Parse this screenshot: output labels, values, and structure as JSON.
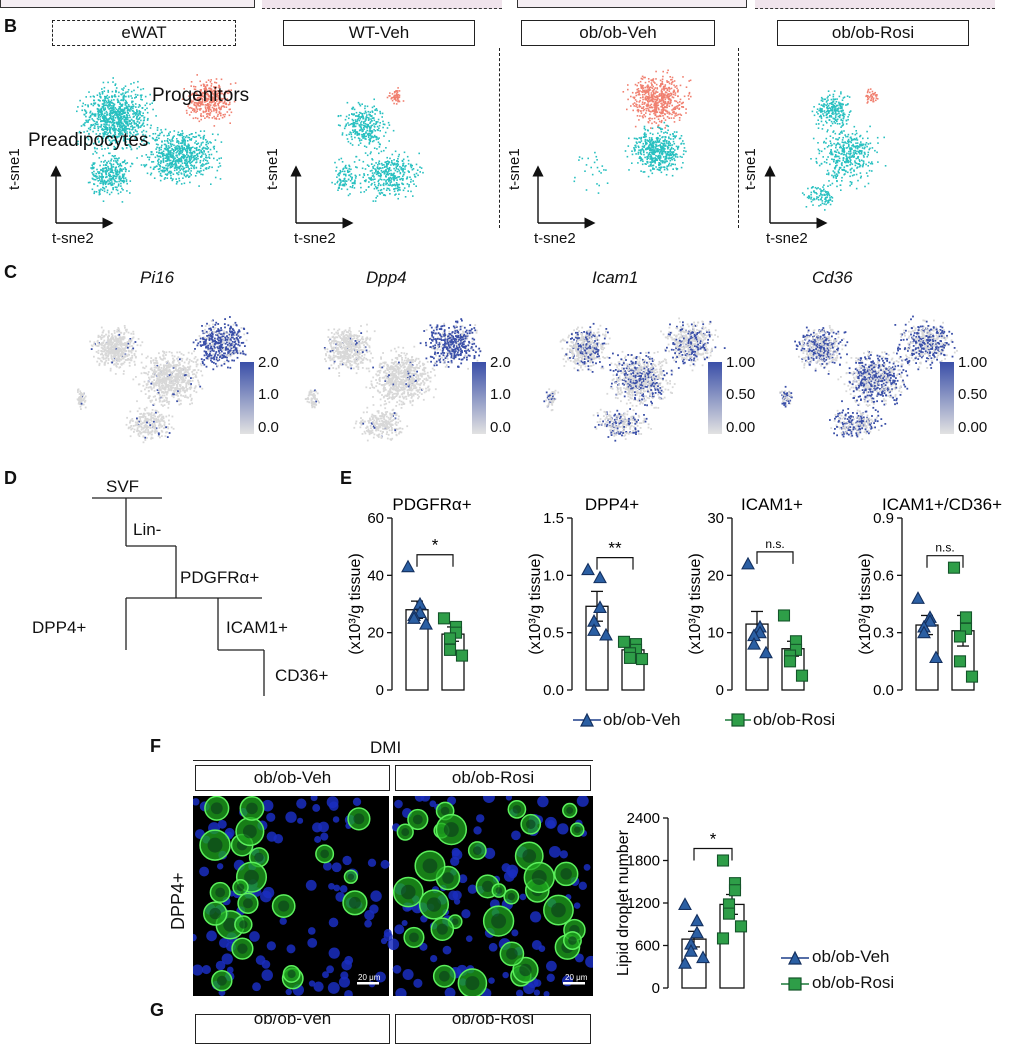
{
  "panels": {
    "B": {
      "letter": "B",
      "labels": [
        "eWAT",
        "WT-Veh",
        "ob/ob-Veh",
        "ob/ob-Rosi"
      ],
      "cluster_labels": {
        "progenitors": "Progenitors",
        "preadipocytes": "Preadipocytes"
      },
      "axis": {
        "x": "t-sne2",
        "y": "t-sne1"
      },
      "colors": {
        "progenitors": "#f08070",
        "preadipocytes": "#28c0c0"
      }
    },
    "C": {
      "letter": "C",
      "genes": [
        {
          "name": "Pi16",
          "scale": [
            "2.0",
            "1.0",
            "0.0"
          ]
        },
        {
          "name": "Dpp4",
          "scale": [
            "2.0",
            "1.0",
            "0.0"
          ]
        },
        {
          "name": "Icam1",
          "scale": [
            "1.00",
            "0.50",
            "0.00"
          ]
        },
        {
          "name": "Cd36",
          "scale": [
            "1.00",
            "0.50",
            "0.00"
          ]
        }
      ],
      "colors": {
        "high": "#3a4fa8",
        "low": "#d8d8d8"
      }
    },
    "D": {
      "letter": "D",
      "nodes": [
        "SVF",
        "Lin-",
        "PDGFRα+",
        "DPP4+",
        "ICAM1+",
        "CD36+"
      ]
    },
    "E": {
      "letter": "E"
    },
    "F": {
      "letter": "F",
      "header": "DMI",
      "groups": [
        "ob/ob-Veh",
        "ob/ob-Rosi"
      ],
      "row_label": "DPP4+",
      "scale_bar": "20 μm"
    },
    "G": {
      "letter": "G",
      "groups": [
        "ob/ob-Veh",
        "ob/ob-Rosi"
      ]
    }
  },
  "legend": {
    "veh": "ob/ob-Veh",
    "rosi": "ob/ob-Rosi"
  },
  "chart_data": [
    {
      "type": "bar",
      "title": "PDGFRα+",
      "ylabel": "(x10³/g tissue)",
      "categories": [
        "ob/ob-Veh",
        "ob/ob-Rosi"
      ],
      "ylim": [
        0,
        60
      ],
      "yticks": [
        "0",
        "20",
        "40",
        "60"
      ],
      "series": [
        {
          "name": "ob/ob-Veh",
          "mean": 28,
          "sem": 3,
          "points": [
            43,
            30,
            27,
            26,
            25,
            23
          ]
        },
        {
          "name": "ob/ob-Rosi",
          "mean": 19.5,
          "sem": 2.5,
          "points": [
            25,
            22,
            20,
            18,
            14,
            12
          ]
        }
      ],
      "significance": "*"
    },
    {
      "type": "bar",
      "title": "DPP4+",
      "ylabel": "(x10³/g tissue)",
      "categories": [
        "ob/ob-Veh",
        "ob/ob-Rosi"
      ],
      "ylim": [
        0,
        1.5
      ],
      "yticks": [
        "0.0",
        "0.5",
        "1.0",
        "1.5"
      ],
      "series": [
        {
          "name": "ob/ob-Veh",
          "mean": 0.73,
          "sem": 0.13,
          "points": [
            1.05,
            0.98,
            0.72,
            0.6,
            0.52,
            0.48
          ]
        },
        {
          "name": "ob/ob-Rosi",
          "mean": 0.35,
          "sem": 0.04,
          "points": [
            0.42,
            0.4,
            0.35,
            0.32,
            0.28,
            0.27
          ]
        }
      ],
      "significance": "**"
    },
    {
      "type": "bar",
      "title": "ICAM1+",
      "ylabel": "(x10³/g tissue)",
      "categories": [
        "ob/ob-Veh",
        "ob/ob-Rosi"
      ],
      "ylim": [
        0,
        30
      ],
      "yticks": [
        "0",
        "10",
        "20",
        "30"
      ],
      "series": [
        {
          "name": "ob/ob-Veh",
          "mean": 11.5,
          "sem": 2.2,
          "points": [
            22,
            11,
            10,
            9.5,
            8,
            6.5
          ]
        },
        {
          "name": "ob/ob-Rosi",
          "mean": 7.2,
          "sem": 1.3,
          "points": [
            13,
            8.5,
            7,
            6,
            5,
            2.5
          ]
        }
      ],
      "significance": "n.s."
    },
    {
      "type": "bar",
      "title": "ICAM1+/CD36+",
      "ylabel": "(x10³/g tissue)",
      "categories": [
        "ob/ob-Veh",
        "ob/ob-Rosi"
      ],
      "ylim": [
        0,
        0.9
      ],
      "yticks": [
        "0.0",
        "0.3",
        "0.6",
        "0.9"
      ],
      "series": [
        {
          "name": "ob/ob-Veh",
          "mean": 0.34,
          "sem": 0.05,
          "points": [
            0.48,
            0.38,
            0.36,
            0.33,
            0.3,
            0.17
          ]
        },
        {
          "name": "ob/ob-Rosi",
          "mean": 0.31,
          "sem": 0.08,
          "points": [
            0.64,
            0.38,
            0.32,
            0.28,
            0.15,
            0.07
          ]
        }
      ],
      "significance": "n.s."
    },
    {
      "type": "bar",
      "title": "",
      "ylabel": "Lipid droplet number",
      "categories": [
        "ob/ob-Veh",
        "ob/ob-Rosi"
      ],
      "ylim": [
        0,
        2400
      ],
      "yticks": [
        "0",
        "600",
        "1200",
        "1800",
        "2400"
      ],
      "series": [
        {
          "name": "ob/ob-Veh",
          "mean": 690,
          "sem": 110,
          "points": [
            1180,
            950,
            780,
            620,
            520,
            430,
            350
          ]
        },
        {
          "name": "ob/ob-Rosi",
          "mean": 1180,
          "sem": 140,
          "points": [
            1800,
            1480,
            1380,
            1180,
            1050,
            870,
            700
          ]
        }
      ],
      "significance": "*"
    }
  ]
}
